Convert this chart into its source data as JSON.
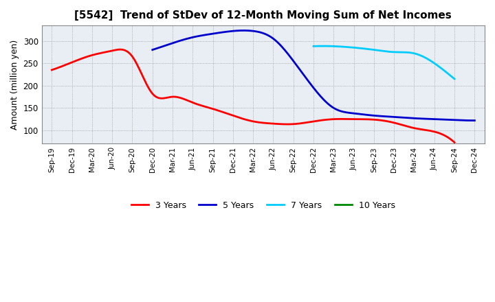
{
  "title": "[5542]  Trend of StDev of 12-Month Moving Sum of Net Incomes",
  "ylabel": "Amount (million yen)",
  "ylim": [
    70,
    335
  ],
  "yticks": [
    100,
    150,
    200,
    250,
    300
  ],
  "x_labels": [
    "Sep-19",
    "Dec-19",
    "Mar-20",
    "Jun-20",
    "Sep-20",
    "Dec-20",
    "Mar-21",
    "Jun-21",
    "Sep-21",
    "Dec-21",
    "Mar-22",
    "Jun-22",
    "Sep-22",
    "Dec-22",
    "Mar-23",
    "Jun-23",
    "Sep-23",
    "Dec-23",
    "Mar-24",
    "Jun-24",
    "Sep-24",
    "Dec-24"
  ],
  "series": {
    "3 Years": {
      "color": "#FF0000",
      "linewidth": 2.0,
      "data_x": [
        0,
        1,
        2,
        3,
        4,
        5,
        6,
        7,
        8,
        9,
        10,
        11,
        12,
        13,
        14,
        15,
        16,
        17,
        18,
        19,
        20
      ],
      "data_y": [
        235,
        252,
        268,
        278,
        265,
        182,
        175,
        162,
        148,
        133,
        120,
        115,
        114,
        120,
        125,
        125,
        124,
        117,
        105,
        97,
        73
      ]
    },
    "5 Years": {
      "color": "#0000CC",
      "linewidth": 2.0,
      "data_x": [
        5,
        6,
        7,
        8,
        9,
        10,
        11,
        12,
        13,
        14,
        15,
        16,
        17,
        18,
        19,
        20,
        21
      ],
      "data_y": [
        280,
        295,
        308,
        316,
        322,
        322,
        305,
        255,
        195,
        150,
        138,
        133,
        130,
        127,
        125,
        123,
        122
      ]
    },
    "7 Years": {
      "color": "#00CCFF",
      "linewidth": 2.0,
      "data_x": [
        13,
        14,
        15,
        16,
        17,
        18,
        19,
        20
      ],
      "data_y": [
        288,
        288,
        285,
        280,
        275,
        272,
        250,
        215
      ]
    },
    "10 Years": {
      "color": "#008800",
      "linewidth": 2.0,
      "data_x": [],
      "data_y": []
    }
  },
  "legend_order": [
    "3 Years",
    "5 Years",
    "7 Years",
    "10 Years"
  ],
  "background_color": "#FFFFFF",
  "plot_bg_color": "#E8EEF4",
  "grid_color": "#999999"
}
